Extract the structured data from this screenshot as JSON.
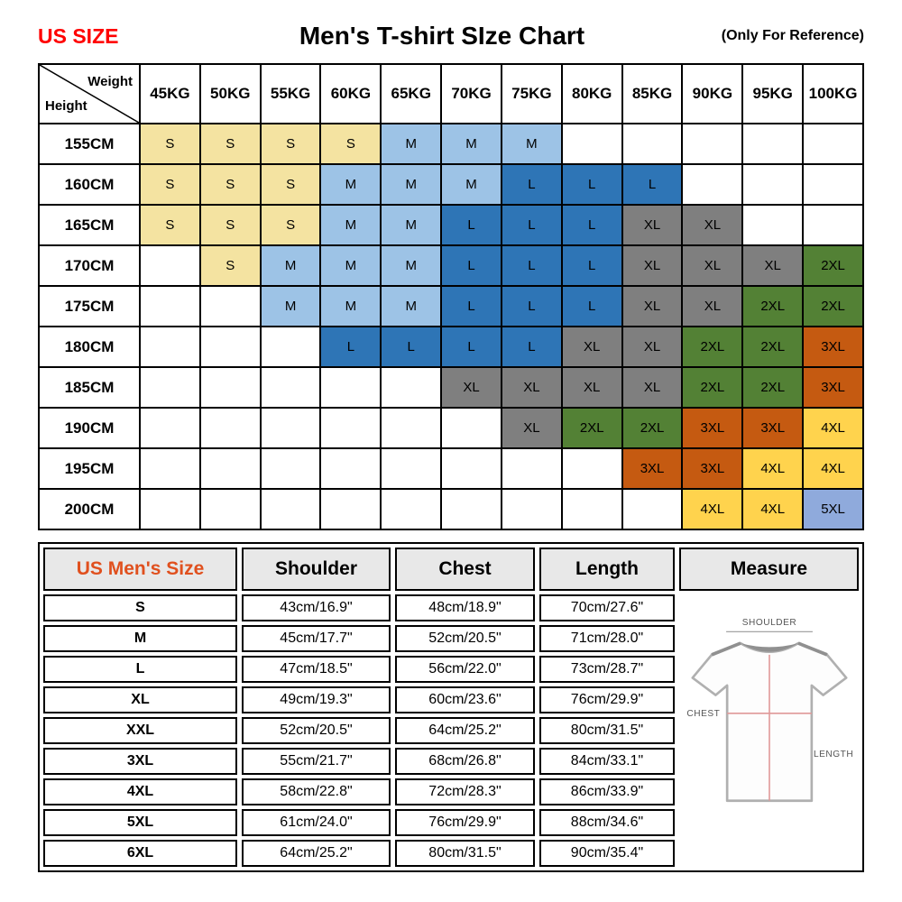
{
  "header": {
    "us_size_label": "US SIZE",
    "title": "Men's T-shirt SIze Chart",
    "reference_note": "(Only For Reference)"
  },
  "accent_colors": {
    "us_size_red": "#FF0000",
    "us_mens_size_orange": "#E0501E"
  },
  "chart_data": [
    {
      "type": "heatmap",
      "title": "Men's T-shirt SIze Chart",
      "corner_labels": {
        "top": "Weight",
        "bottom": "Height"
      },
      "x_categories": [
        "45KG",
        "50KG",
        "55KG",
        "60KG",
        "65KG",
        "70KG",
        "75KG",
        "80KG",
        "85KG",
        "90KG",
        "95KG",
        "100KG"
      ],
      "y_categories": [
        "155CM",
        "160CM",
        "165CM",
        "170CM",
        "175CM",
        "180CM",
        "185CM",
        "190CM",
        "195CM",
        "200CM"
      ],
      "values": [
        [
          "S",
          "S",
          "S",
          "S",
          "M",
          "M",
          "M",
          "",
          "",
          "",
          "",
          ""
        ],
        [
          "S",
          "S",
          "S",
          "M",
          "M",
          "M",
          "L",
          "L",
          "L",
          "",
          "",
          ""
        ],
        [
          "S",
          "S",
          "S",
          "M",
          "M",
          "L",
          "L",
          "L",
          "XL",
          "XL",
          "",
          ""
        ],
        [
          "",
          "S",
          "M",
          "M",
          "M",
          "L",
          "L",
          "L",
          "XL",
          "XL",
          "XL",
          "2XL"
        ],
        [
          "",
          "",
          "M",
          "M",
          "M",
          "L",
          "L",
          "L",
          "XL",
          "XL",
          "2XL",
          "2XL"
        ],
        [
          "",
          "",
          "",
          "L",
          "L",
          "L",
          "L",
          "XL",
          "XL",
          "2XL",
          "2XL",
          "3XL"
        ],
        [
          "",
          "",
          "",
          "",
          "",
          "XL",
          "XL",
          "XL",
          "XL",
          "2XL",
          "2XL",
          "3XL"
        ],
        [
          "",
          "",
          "",
          "",
          "",
          "",
          "XL",
          "2XL",
          "2XL",
          "3XL",
          "3XL",
          "4XL"
        ],
        [
          "",
          "",
          "",
          "",
          "",
          "",
          "",
          "",
          "3XL",
          "3XL",
          "4XL",
          "4XL"
        ],
        [
          "",
          "",
          "",
          "",
          "",
          "",
          "",
          "",
          "",
          "4XL",
          "4XL",
          "5XL"
        ]
      ],
      "colors": {
        "S": "#F4E3A1",
        "M": "#9DC3E6",
        "L": "#2E75B6",
        "XL": "#7F7F7F",
        "2XL": "#538135",
        "3XL": "#C55A11",
        "4XL": "#FFD34D",
        "5XL": "#8FAADC"
      }
    },
    {
      "type": "table",
      "columns": [
        "US Men's Size",
        "Shoulder",
        "Chest",
        "Length"
      ],
      "measure_header": "Measure",
      "rows": [
        [
          "S",
          "43cm/16.9\"",
          "48cm/18.9\"",
          "70cm/27.6\""
        ],
        [
          "M",
          "45cm/17.7\"",
          "52cm/20.5\"",
          "71cm/28.0\""
        ],
        [
          "L",
          "47cm/18.5\"",
          "56cm/22.0\"",
          "73cm/28.7\""
        ],
        [
          "XL",
          "49cm/19.3\"",
          "60cm/23.6\"",
          "76cm/29.9\""
        ],
        [
          "XXL",
          "52cm/20.5\"",
          "64cm/25.2\"",
          "80cm/31.5\""
        ],
        [
          "3XL",
          "55cm/21.7\"",
          "68cm/26.8\"",
          "84cm/33.1\""
        ],
        [
          "4XL",
          "58cm/22.8\"",
          "72cm/28.3\"",
          "86cm/33.9\""
        ],
        [
          "5XL",
          "61cm/24.0\"",
          "76cm/29.9\"",
          "88cm/34.6\""
        ],
        [
          "6XL",
          "64cm/25.2\"",
          "80cm/31.5\"",
          "90cm/35.4\""
        ]
      ],
      "diagram": {
        "shoulder": "SHOULDER",
        "chest": "CHEST",
        "length": "LENGTH"
      }
    }
  ]
}
